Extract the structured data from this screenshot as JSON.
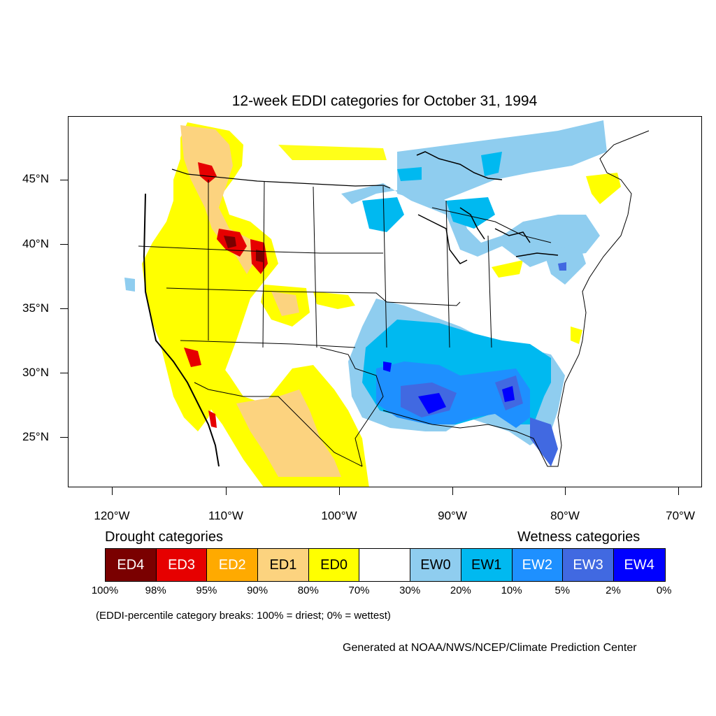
{
  "title": "12-week EDDI categories for October 31, 1994",
  "axes": {
    "lat_labels": [
      "45°N",
      "40°N",
      "35°N",
      "30°N",
      "25°N"
    ],
    "lon_labels": [
      "120°W",
      "110°W",
      "100°W",
      "90°W",
      "80°W",
      "70°W"
    ]
  },
  "legend": {
    "drought_heading": "Drought categories",
    "wetness_heading": "Wetness categories",
    "categories": [
      {
        "label": "ED4",
        "color": "#7a0000",
        "text_color": "#ffffff"
      },
      {
        "label": "ED3",
        "color": "#e60000",
        "text_color": "#ffffff"
      },
      {
        "label": "ED2",
        "color": "#ffaa00",
        "text_color": "#ffffff"
      },
      {
        "label": "ED1",
        "color": "#fcd37f",
        "text_color": "#000000"
      },
      {
        "label": "ED0",
        "color": "#ffff00",
        "text_color": "#000000"
      },
      {
        "label": "",
        "color": "#ffffff",
        "text_color": "#000000"
      },
      {
        "label": "EW0",
        "color": "#8fcdef",
        "text_color": "#000000"
      },
      {
        "label": "EW1",
        "color": "#00b9f0",
        "text_color": "#000000"
      },
      {
        "label": "EW2",
        "color": "#1e90ff",
        "text_color": "#ffffff"
      },
      {
        "label": "EW3",
        "color": "#4169e1",
        "text_color": "#ffffff"
      },
      {
        "label": "EW4",
        "color": "#0000ff",
        "text_color": "#ffffff"
      }
    ],
    "breaks": [
      "100%",
      "98%",
      "95%",
      "90%",
      "80%",
      "70%",
      "30%",
      "20%",
      "10%",
      "5%",
      "2%",
      "0%"
    ]
  },
  "footnote": "(EDDI-percentile category breaks: 100% = driest; 0% = wettest)",
  "credit": "Generated at NOAA/NWS/NCEP/Climate Prediction Center"
}
